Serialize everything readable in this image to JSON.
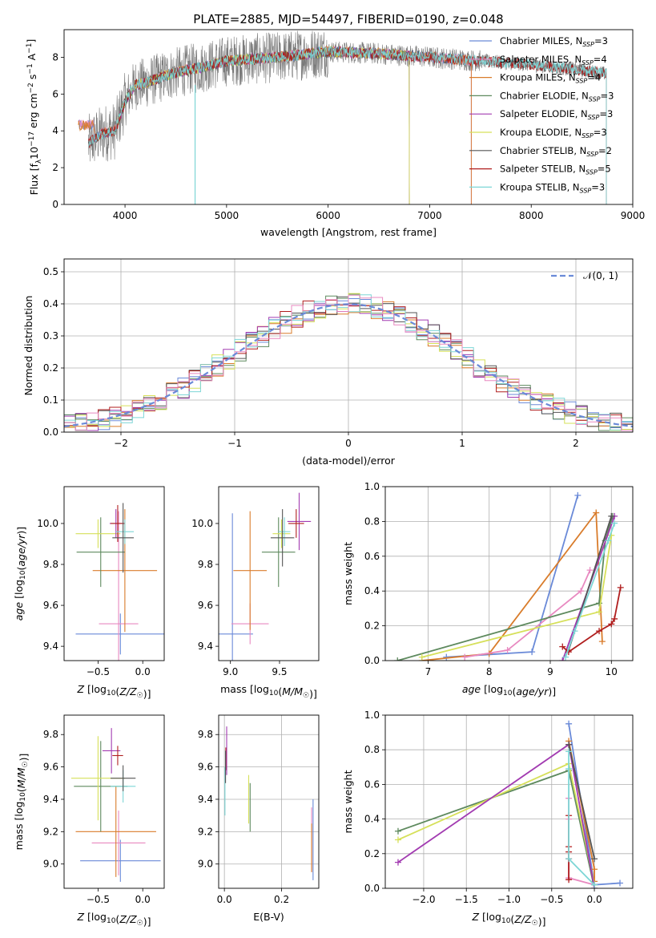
{
  "title": "PLATE=2885, MJD=54497, FIBERID=0190, z=0.048",
  "palette": [
    "#6a8ad8",
    "#d97c2b",
    "#5e8a5e",
    "#a23bb1",
    "#d6e05a",
    "#555555",
    "#b01e1e",
    "#7dd6d6",
    "#e889c0"
  ],
  "chart_data": [
    {
      "id": "spectrum",
      "type": "line",
      "title": "PLATE=2885, MJD=54497, FIBERID=0190, z=0.048",
      "xlabel": "wavelength [Angstrom, rest frame]",
      "ylabel": "Flux [f_λ 10^-17 erg cm^-2 s^-1 A^-1]",
      "xlim": [
        3400,
        9000
      ],
      "ylim": [
        0,
        9.5
      ],
      "xticks": [
        "4000",
        "5000",
        "6000",
        "7000",
        "8000",
        "9000"
      ],
      "yticks": [
        "0",
        "2",
        "4",
        "6",
        "8"
      ],
      "legend_position": "top-right",
      "data_x_range": [
        3640,
        8740
      ],
      "data_continuum": {
        "x": [
          3640,
          3700,
          3800,
          3900,
          4000,
          4100,
          4200,
          4400,
          4600,
          4800,
          5000,
          5500,
          6000,
          6500,
          7000,
          7500,
          8000,
          8500,
          8740
        ],
        "y": [
          3.3,
          3.6,
          3.9,
          4.0,
          5.6,
          6.5,
          6.6,
          7.0,
          7.3,
          7.5,
          7.8,
          8.0,
          8.3,
          8.2,
          8.0,
          7.8,
          7.6,
          7.3,
          7.1
        ]
      },
      "series": [
        {
          "name": "Chabrier MILES, N_SSP=3",
          "label": "Chabrier MILES, N",
          "sub": "SSP",
          "suffix": "=3",
          "color": "#6a8ad8",
          "range": [
            3540,
            7410
          ]
        },
        {
          "name": "Salpeter MILES, N_SSP=4",
          "label": "Salpeter MILES, N",
          "sub": "SSP",
          "suffix": "=4",
          "color": "#e889c0",
          "range": [
            3540,
            7410
          ]
        },
        {
          "name": "Kroupa MILES, N_SSP=4",
          "label": "Kroupa MILES, N",
          "sub": "SSP",
          "suffix": "=4",
          "color": "#d97c2b",
          "range": [
            3540,
            7410
          ]
        },
        {
          "name": "Chabrier ELODIE, N_SSP=3",
          "label": "Chabrier ELODIE, N",
          "sub": "SSP",
          "suffix": "=3",
          "color": "#5e8a5e",
          "range": [
            3900,
            6800
          ]
        },
        {
          "name": "Salpeter ELODIE, N_SSP=3",
          "label": "Salpeter ELODIE, N",
          "sub": "SSP",
          "suffix": "=3",
          "color": "#a23bb1",
          "range": [
            3900,
            6800
          ]
        },
        {
          "name": "Kroupa ELODIE, N_SSP=3",
          "label": "Kroupa ELODIE, N",
          "sub": "SSP",
          "suffix": "=3",
          "color": "#d6e05a",
          "range": [
            3900,
            6800
          ]
        },
        {
          "name": "Chabrier STELIB, N_SSP=2",
          "label": "Chabrier STELIB, N",
          "sub": "SSP",
          "suffix": "=2",
          "color": "#555555",
          "range": [
            3640,
            8740
          ]
        },
        {
          "name": "Salpeter STELIB, N_SSP=5",
          "label": "Salpeter STELIB, N",
          "sub": "SSP",
          "suffix": "=5",
          "color": "#b01e1e",
          "range": [
            3640,
            8740
          ]
        },
        {
          "name": "Kroupa STELIB, N_SSP=3",
          "label": "Kroupa STELIB, N",
          "sub": "SSP",
          "suffix": "=3",
          "color": "#7dd6d6",
          "range": [
            3640,
            8740
          ]
        }
      ]
    },
    {
      "id": "residuals",
      "type": "line",
      "xlabel": "(data-model)/error",
      "ylabel": "Normed distribution",
      "xlim": [
        -2.5,
        2.5
      ],
      "ylim": [
        0,
        0.54
      ],
      "xticks": [
        "−2",
        "−1",
        "0",
        "1",
        "2"
      ],
      "yticks": [
        "0.0",
        "0.1",
        "0.2",
        "0.3",
        "0.4",
        "0.5"
      ],
      "grid": true,
      "legend_position": "top-right",
      "legend": "𝒩(0, 1)",
      "curve": {
        "type": "gaussian",
        "mean": 0,
        "sigma": 1
      },
      "bin_width": 0.1
    },
    {
      "id": "age_vs_Z",
      "type": "scatter",
      "xlabel": "Z [log10(Z/Z☉)]",
      "ylabel": "age  [log10(age/yr)]",
      "xlim": [
        -0.88,
        0.24
      ],
      "ylim": [
        9.33,
        10.18
      ],
      "xticks": [
        "−0.5",
        "0.0"
      ],
      "yticks": [
        "9.4",
        "9.6",
        "9.8",
        "10.0"
      ],
      "points": [
        {
          "x": -0.25,
          "xerr": 0.5,
          "y": 9.46,
          "yerr": 0.1,
          "color": "#6a8ad8"
        },
        {
          "x": -0.27,
          "xerr": 0.22,
          "y": 9.51,
          "yerr": 0.55,
          "color": "#e889c0"
        },
        {
          "x": -0.2,
          "xerr": 0.36,
          "y": 9.77,
          "yerr": 0.3,
          "color": "#d97c2b"
        },
        {
          "x": -0.47,
          "xerr": 0.27,
          "y": 9.86,
          "yerr": 0.17,
          "color": "#5e8a5e"
        },
        {
          "x": -0.5,
          "xerr": 0.25,
          "y": 9.95,
          "yerr": 0.07,
          "color": "#d6e05a"
        },
        {
          "x": -0.3,
          "xerr": 0.07,
          "y": 10.0,
          "yerr": 0.07,
          "color": "#a23bb1"
        },
        {
          "x": -0.28,
          "xerr": 0.08,
          "y": 10.0,
          "yerr": 0.09,
          "color": "#b01e1e"
        },
        {
          "x": -0.2,
          "xerr": 0.1,
          "y": 9.96,
          "yerr": 0.06,
          "color": "#7dd6d6"
        },
        {
          "x": -0.22,
          "xerr": 0.12,
          "y": 9.93,
          "yerr": 0.17,
          "color": "#555555"
        }
      ]
    },
    {
      "id": "age_vs_mass",
      "type": "scatter",
      "xlabel": "mass [log10(M/M☉)]",
      "ylabel": "",
      "xlim": [
        8.88,
        9.9
      ],
      "ylim": [
        9.33,
        10.18
      ],
      "xticks": [
        "9.0",
        "9.5"
      ],
      "yticks": [
        "9.4",
        "9.6",
        "9.8",
        "10.0"
      ],
      "points": [
        {
          "x": 9.02,
          "xerr": 0.21,
          "y": 9.46,
          "yerr": 0.59,
          "color": "#6a8ad8"
        },
        {
          "x": 9.2,
          "xerr": 0.19,
          "y": 9.51,
          "yerr": 0.1,
          "color": "#e889c0"
        },
        {
          "x": 9.2,
          "xerr": 0.17,
          "y": 9.77,
          "yerr": 0.29,
          "color": "#d97c2b"
        },
        {
          "x": 9.49,
          "xerr": 0.17,
          "y": 9.86,
          "yerr": 0.17,
          "color": "#5e8a5e"
        },
        {
          "x": 9.52,
          "xerr": 0.09,
          "y": 9.95,
          "yerr": 0.07,
          "color": "#d6e05a"
        },
        {
          "x": 9.7,
          "xerr": 0.12,
          "y": 10.01,
          "yerr": 0.14,
          "color": "#a23bb1"
        },
        {
          "x": 9.67,
          "xerr": 0.08,
          "y": 10.0,
          "yerr": 0.07,
          "color": "#b01e1e"
        },
        {
          "x": 9.55,
          "xerr": 0.06,
          "y": 9.96,
          "yerr": 0.07,
          "color": "#7dd6d6"
        },
        {
          "x": 9.53,
          "xerr": 0.12,
          "y": 9.93,
          "yerr": 0.14,
          "color": "#555555"
        }
      ]
    },
    {
      "id": "weight_vs_age",
      "type": "line",
      "xlabel": "age  [log10(age/yr)]",
      "ylabel": "mass weight",
      "xlim": [
        6.3,
        10.35
      ],
      "ylim": [
        0,
        1.0
      ],
      "xticks": [
        "7",
        "8",
        "9",
        "10"
      ],
      "yticks": [
        "0.0",
        "0.2",
        "0.4",
        "0.6",
        "0.8",
        "1.0"
      ],
      "grid": true,
      "series": [
        {
          "color": "#6a8ad8",
          "points": [
            [
              7.3,
              0.02
            ],
            [
              8.7,
              0.05
            ],
            [
              9.45,
              0.95
            ]
          ]
        },
        {
          "color": "#d97c2b",
          "points": [
            [
              6.9,
              0.0
            ],
            [
              8.0,
              0.04
            ],
            [
              9.75,
              0.85
            ],
            [
              9.85,
              0.11
            ]
          ]
        },
        {
          "color": "#e889c0",
          "points": [
            [
              7.6,
              0.02
            ],
            [
              8.3,
              0.06
            ],
            [
              9.5,
              0.4
            ],
            [
              9.65,
              0.52
            ]
          ]
        },
        {
          "color": "#5e8a5e",
          "points": [
            [
              6.5,
              0.0
            ],
            [
              9.8,
              0.33
            ],
            [
              9.9,
              0.69
            ],
            [
              10.02,
              0.83
            ]
          ]
        },
        {
          "color": "#d6e05a",
          "points": [
            [
              6.9,
              0.02
            ],
            [
              9.8,
              0.28
            ],
            [
              10.0,
              0.72
            ]
          ]
        },
        {
          "color": "#a23bb1",
          "points": [
            [
              9.2,
              0.0
            ],
            [
              10.05,
              0.83
            ]
          ]
        },
        {
          "color": "#555555",
          "points": [
            [
              9.3,
              0.06
            ],
            [
              10.0,
              0.83
            ]
          ]
        },
        {
          "color": "#b01e1e",
          "points": [
            [
              9.2,
              0.08
            ],
            [
              9.3,
              0.05
            ],
            [
              9.8,
              0.17
            ],
            [
              10.0,
              0.21
            ],
            [
              10.05,
              0.24
            ],
            [
              10.15,
              0.42
            ]
          ]
        },
        {
          "color": "#7dd6d6",
          "points": [
            [
              9.25,
              0.02
            ],
            [
              9.4,
              0.17
            ],
            [
              9.95,
              0.69
            ],
            [
              10.05,
              0.79
            ]
          ]
        }
      ]
    },
    {
      "id": "mass_vs_Z",
      "type": "scatter",
      "xlabel": "Z [log10(Z/Z☉)]",
      "ylabel": "mass [log10(M/M☉)]",
      "xlim": [
        -0.88,
        0.24
      ],
      "ylim": [
        8.85,
        9.92
      ],
      "xticks": [
        "−0.5",
        "0.0"
      ],
      "yticks": [
        "9.0",
        "9.2",
        "9.4",
        "9.6",
        "9.8"
      ],
      "points": [
        {
          "x": -0.25,
          "xerr": 0.45,
          "y": 9.02,
          "yerr": 0.13,
          "color": "#6a8ad8"
        },
        {
          "x": -0.27,
          "xerr": 0.3,
          "y": 9.13,
          "yerr": 0.2,
          "color": "#e889c0"
        },
        {
          "x": -0.3,
          "xerr": 0.45,
          "y": 9.2,
          "yerr": 0.28,
          "color": "#d97c2b"
        },
        {
          "x": -0.47,
          "xerr": 0.3,
          "y": 9.48,
          "yerr": 0.28,
          "color": "#5e8a5e"
        },
        {
          "x": -0.5,
          "xerr": 0.3,
          "y": 9.53,
          "yerr": 0.26,
          "color": "#d6e05a"
        },
        {
          "x": -0.35,
          "xerr": 0.1,
          "y": 9.7,
          "yerr": 0.14,
          "color": "#a23bb1"
        },
        {
          "x": -0.28,
          "xerr": 0.06,
          "y": 9.67,
          "yerr": 0.06,
          "color": "#b01e1e"
        },
        {
          "x": -0.22,
          "xerr": 0.14,
          "y": 9.48,
          "yerr": 0.1,
          "color": "#7dd6d6"
        },
        {
          "x": -0.22,
          "xerr": 0.14,
          "y": 9.53,
          "yerr": 0.08,
          "color": "#555555"
        }
      ]
    },
    {
      "id": "mass_vs_ebv",
      "type": "scatter",
      "xlabel": "E(B-V)",
      "ylabel": "",
      "xlim": [
        -0.02,
        0.33
      ],
      "ylim": [
        8.85,
        9.92
      ],
      "xticks": [
        "0.0",
        "0.2"
      ],
      "yticks": [
        "9.0",
        "9.2",
        "9.4",
        "9.6",
        "9.8"
      ],
      "grid": true,
      "points": [
        {
          "x": 0.31,
          "xerr": 0,
          "y": 9.15,
          "yerr": 0.25,
          "color": "#6a8ad8"
        },
        {
          "x": 0.305,
          "xerr": 0,
          "y": 9.15,
          "yerr": 0.2,
          "color": "#e889c0"
        },
        {
          "x": 0.305,
          "xerr": 0,
          "y": 9.1,
          "yerr": 0.15,
          "color": "#d97c2b"
        },
        {
          "x": 0.09,
          "xerr": 0,
          "y": 9.35,
          "yerr": 0.15,
          "color": "#5e8a5e"
        },
        {
          "x": 0.085,
          "xerr": 0,
          "y": 9.4,
          "yerr": 0.15,
          "color": "#d6e05a"
        },
        {
          "x": 0.008,
          "xerr": 0,
          "y": 9.7,
          "yerr": 0.15,
          "color": "#a23bb1"
        },
        {
          "x": 0.005,
          "xerr": 0,
          "y": 9.65,
          "yerr": 0.07,
          "color": "#b01e1e"
        },
        {
          "x": 0.002,
          "xerr": 0,
          "y": 9.45,
          "yerr": 0.15,
          "color": "#7dd6d6"
        },
        {
          "x": 0.004,
          "xerr": 0,
          "y": 9.6,
          "yerr": 0.1,
          "color": "#555555"
        }
      ]
    },
    {
      "id": "weight_vs_Z",
      "type": "line",
      "xlabel": "Z [log10(Z/Z☉)]",
      "ylabel": "mass weight",
      "xlim": [
        -2.45,
        0.45
      ],
      "ylim": [
        0,
        1.0
      ],
      "xticks": [
        "−2.0",
        "−1.5",
        "−1.0",
        "−0.5",
        "0.0"
      ],
      "yticks": [
        "0.0",
        "0.2",
        "0.4",
        "0.6",
        "0.8",
        "1.0"
      ],
      "grid": true,
      "series": [
        {
          "color": "#6a8ad8",
          "points": [
            [
              -0.3,
              0.95
            ],
            [
              0.0,
              0.02
            ],
            [
              0.3,
              0.03
            ]
          ]
        },
        {
          "color": "#d97c2b",
          "points": [
            [
              -0.3,
              0.85
            ],
            [
              0.0,
              0.11
            ],
            [
              0.0,
              0.04
            ]
          ]
        },
        {
          "color": "#e889c0",
          "points": [
            [
              -0.3,
              0.52
            ],
            [
              -0.3,
              0.4
            ],
            [
              -0.3,
              0.06
            ],
            [
              0.0,
              0.02
            ]
          ]
        },
        {
          "color": "#5e8a5e",
          "points": [
            [
              -2.3,
              0.33
            ],
            [
              -0.3,
              0.68
            ],
            [
              0.0,
              0.0
            ]
          ]
        },
        {
          "color": "#d6e05a",
          "points": [
            [
              -2.3,
              0.28
            ],
            [
              -0.3,
              0.72
            ],
            [
              0.0,
              0.02
            ]
          ]
        },
        {
          "color": "#a23bb1",
          "points": [
            [
              -2.3,
              0.15
            ],
            [
              -0.3,
              0.83
            ],
            [
              0.0,
              0.0
            ]
          ]
        },
        {
          "color": "#555555",
          "points": [
            [
              -0.3,
              0.83
            ],
            [
              0.0,
              0.17
            ]
          ]
        },
        {
          "color": "#b01e1e",
          "points": [
            [
              -0.3,
              0.42
            ],
            [
              -0.3,
              0.24
            ],
            [
              -0.3,
              0.21
            ],
            [
              -0.3,
              0.17
            ],
            [
              -0.3,
              0.05
            ]
          ]
        },
        {
          "color": "#7dd6d6",
          "points": [
            [
              -0.3,
              0.79
            ],
            [
              -0.3,
              0.69
            ],
            [
              -0.3,
              0.17
            ],
            [
              0.0,
              0.02
            ]
          ]
        }
      ]
    }
  ]
}
